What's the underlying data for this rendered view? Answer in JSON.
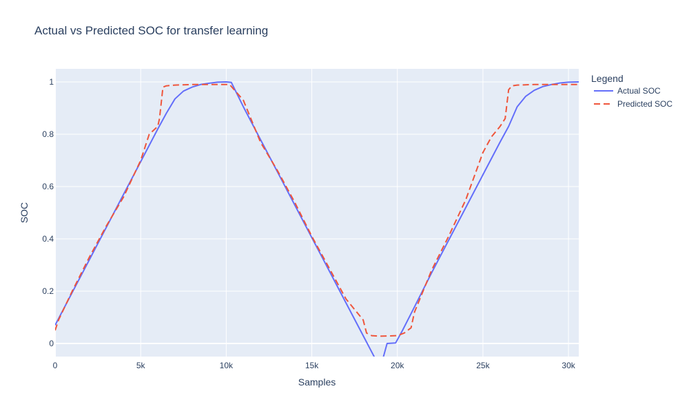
{
  "chart_data": {
    "type": "line",
    "title": "Actual vs Predicted SOC for transfer learning",
    "xlabel": "Samples",
    "ylabel": "SOC",
    "xlim": [
      0,
      30600
    ],
    "ylim": [
      -0.05,
      1.05
    ],
    "x_ticks": [
      0,
      5000,
      10000,
      15000,
      20000,
      25000,
      30000
    ],
    "x_tick_labels": [
      "0",
      "5k",
      "10k",
      "15k",
      "20k",
      "25k",
      "30k"
    ],
    "y_ticks": [
      0,
      0.2,
      0.4,
      0.6,
      0.8,
      1
    ],
    "y_tick_labels": [
      "0",
      "0.2",
      "0.4",
      "0.6",
      "0.8",
      "1"
    ],
    "grid": true,
    "legend": {
      "title": "Legend",
      "position": "right"
    },
    "background": "#e5ecf6",
    "series": [
      {
        "name": "Actual SOC",
        "color": "#636efa",
        "dash": "solid",
        "x": [
          0,
          1000,
          2000,
          3000,
          4000,
          5000,
          6000,
          6500,
          7000,
          7500,
          8000,
          8500,
          9000,
          9500,
          10000,
          10300,
          11000,
          12000,
          13000,
          14000,
          15000,
          16000,
          17000,
          18000,
          19000,
          19400,
          19900,
          20300,
          21000,
          22000,
          23000,
          24000,
          25000,
          26000,
          26500,
          27000,
          27500,
          28000,
          28500,
          29000,
          29500,
          30000,
          30600
        ],
        "y": [
          0.07,
          0.195,
          0.32,
          0.445,
          0.57,
          0.695,
          0.82,
          0.88,
          0.935,
          0.965,
          0.98,
          0.99,
          0.995,
          0.999,
          1.0,
          0.998,
          0.905,
          0.78,
          0.655,
          0.53,
          0.405,
          0.28,
          0.155,
          0.03,
          -0.095,
          0.0,
          0.002,
          0.05,
          0.14,
          0.27,
          0.395,
          0.52,
          0.645,
          0.77,
          0.83,
          0.905,
          0.945,
          0.968,
          0.982,
          0.99,
          0.996,
          0.999,
          1.0
        ]
      },
      {
        "name": "Predicted SOC",
        "color": "#ef553b",
        "dash": "dash",
        "x": [
          0,
          200,
          1000,
          2000,
          3000,
          4000,
          5000,
          5500,
          6000,
          6100,
          6300,
          6500,
          7000,
          8000,
          9000,
          10000,
          10200,
          11000,
          11500,
          12000,
          13000,
          14000,
          15000,
          16000,
          17000,
          18000,
          18200,
          18500,
          19000,
          20000,
          20400,
          20800,
          21000,
          22000,
          23000,
          24000,
          25000,
          25500,
          26000,
          26300,
          26500,
          26700,
          27000,
          28000,
          29000,
          30000,
          30600
        ],
        "y": [
          0.05,
          0.09,
          0.2,
          0.33,
          0.45,
          0.56,
          0.7,
          0.8,
          0.83,
          0.86,
          0.98,
          0.985,
          0.988,
          0.99,
          0.99,
          0.99,
          0.99,
          0.93,
          0.85,
          0.77,
          0.66,
          0.54,
          0.41,
          0.29,
          0.17,
          0.09,
          0.04,
          0.03,
          0.028,
          0.03,
          0.04,
          0.06,
          0.12,
          0.28,
          0.41,
          0.55,
          0.73,
          0.79,
          0.83,
          0.86,
          0.97,
          0.985,
          0.988,
          0.99,
          0.99,
          0.99,
          0.99
        ]
      }
    ]
  }
}
